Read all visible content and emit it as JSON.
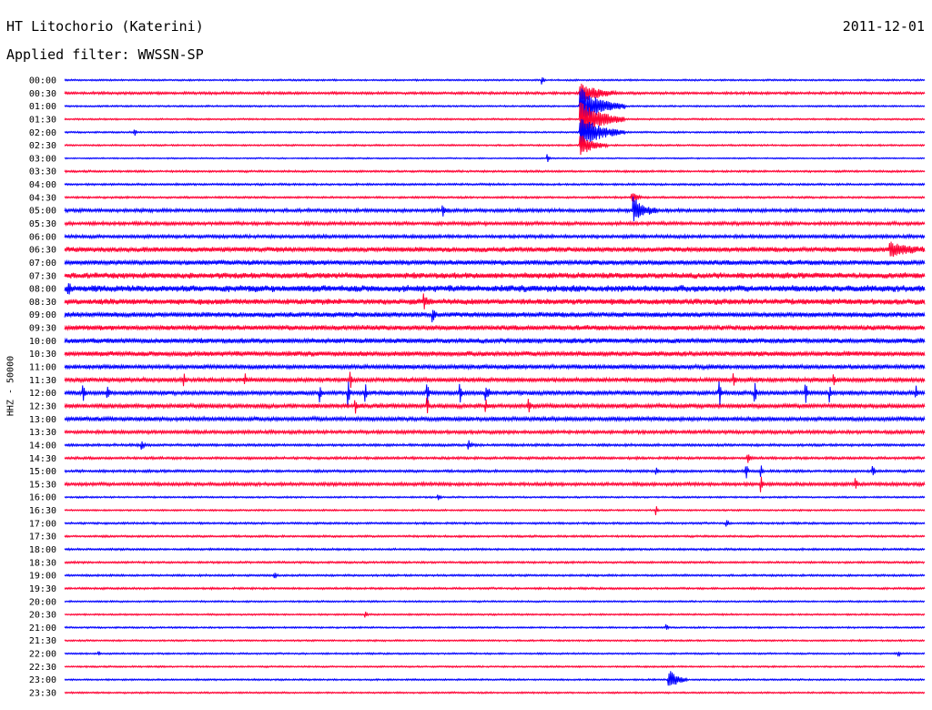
{
  "header": {
    "station": "HT Litochorio (Katerini)",
    "date": "2011-12-01",
    "filter": "Applied filter: WWSSN-SP",
    "channel": "HHZ - 50000"
  },
  "chart_data": {
    "type": "line",
    "title": "HT Litochorio (Katerini)",
    "subtitle": "Applied filter: WWSSN-SP",
    "ylabel": "HHZ - 50000",
    "colors": {
      "even_trace": "#0000ff",
      "odd_trace": "#ff0033"
    },
    "rows": [
      {
        "label": "00:00",
        "noise": 1,
        "events": [
          {
            "x": 0.556,
            "a": 4,
            "d": 0.002
          }
        ]
      },
      {
        "label": "00:30",
        "noise": 1.5,
        "events": [
          {
            "x": 0.6,
            "a": 12,
            "d": 0.04
          }
        ]
      },
      {
        "label": "01:00",
        "noise": 1,
        "events": [
          {
            "x": 0.6,
            "a": 20,
            "d": 0.05
          }
        ]
      },
      {
        "label": "01:30",
        "noise": 1,
        "events": [
          {
            "x": 0.6,
            "a": 20,
            "d": 0.05
          }
        ]
      },
      {
        "label": "02:00",
        "noise": 1,
        "events": [
          {
            "x": 0.082,
            "a": 4,
            "d": 0.002
          },
          {
            "x": 0.6,
            "a": 18,
            "d": 0.05
          }
        ]
      },
      {
        "label": "02:30",
        "noise": 1,
        "events": [
          {
            "x": 0.6,
            "a": 12,
            "d": 0.03
          }
        ]
      },
      {
        "label": "03:00",
        "noise": 0.8,
        "events": [
          {
            "x": 0.562,
            "a": 4,
            "d": 0.003
          }
        ]
      },
      {
        "label": "03:30",
        "noise": 1.2,
        "events": []
      },
      {
        "label": "04:00",
        "noise": 1.2,
        "events": []
      },
      {
        "label": "04:30",
        "noise": 1.2,
        "events": [
          {
            "x": 0.66,
            "a": 6,
            "d": 0.01
          }
        ]
      },
      {
        "label": "05:00",
        "noise": 2,
        "events": [
          {
            "x": 0.44,
            "a": 5,
            "d": 0.006
          },
          {
            "x": 0.662,
            "a": 14,
            "d": 0.025
          }
        ]
      },
      {
        "label": "05:30",
        "noise": 2,
        "events": []
      },
      {
        "label": "06:00",
        "noise": 2,
        "events": []
      },
      {
        "label": "06:30",
        "noise": 3,
        "events": [
          {
            "x": 0.96,
            "a": 7,
            "d": 0.04
          }
        ]
      },
      {
        "label": "07:00",
        "noise": 3,
        "events": []
      },
      {
        "label": "07:30",
        "noise": 3.5,
        "events": []
      },
      {
        "label": "08:00",
        "noise": 4,
        "events": [
          {
            "x": 0.005,
            "a": 7,
            "d": 0.004
          }
        ]
      },
      {
        "label": "08:30",
        "noise": 3.5,
        "events": [
          {
            "x": 0.418,
            "a": 7,
            "d": 0.006
          }
        ]
      },
      {
        "label": "09:00",
        "noise": 3,
        "events": [
          {
            "x": 0.428,
            "a": 8,
            "d": 0.004
          }
        ]
      },
      {
        "label": "09:30",
        "noise": 3,
        "events": []
      },
      {
        "label": "10:00",
        "noise": 3,
        "events": []
      },
      {
        "label": "10:30",
        "noise": 3,
        "events": []
      },
      {
        "label": "11:00",
        "noise": 2.5,
        "events": []
      },
      {
        "label": "11:30",
        "noise": 2.5,
        "events": [
          {
            "x": 0.139,
            "a": 6,
            "d": 0.002
          },
          {
            "x": 0.21,
            "a": 6,
            "d": 0.002
          },
          {
            "x": 0.333,
            "a": 7,
            "d": 0.002
          },
          {
            "x": 0.778,
            "a": 7,
            "d": 0.002
          },
          {
            "x": 0.895,
            "a": 7,
            "d": 0.002
          }
        ]
      },
      {
        "label": "12:00",
        "noise": 2.5,
        "events": [
          {
            "x": 0.022,
            "a": 8,
            "d": 0.003
          },
          {
            "x": 0.05,
            "a": 6,
            "d": 0.003
          },
          {
            "x": 0.297,
            "a": 12,
            "d": 0.002
          },
          {
            "x": 0.33,
            "a": 16,
            "d": 0.002
          },
          {
            "x": 0.35,
            "a": 8,
            "d": 0.002
          },
          {
            "x": 0.422,
            "a": 14,
            "d": 0.002
          },
          {
            "x": 0.46,
            "a": 10,
            "d": 0.002
          },
          {
            "x": 0.49,
            "a": 8,
            "d": 0.006
          },
          {
            "x": 0.762,
            "a": 12,
            "d": 0.002
          },
          {
            "x": 0.803,
            "a": 10,
            "d": 0.002
          },
          {
            "x": 0.862,
            "a": 14,
            "d": 0.002
          },
          {
            "x": 0.89,
            "a": 10,
            "d": 0.002
          },
          {
            "x": 0.99,
            "a": 8,
            "d": 0.002
          }
        ]
      },
      {
        "label": "12:30",
        "noise": 2.5,
        "events": [
          {
            "x": 0.338,
            "a": 8,
            "d": 0.002
          },
          {
            "x": 0.422,
            "a": 10,
            "d": 0.002
          },
          {
            "x": 0.49,
            "a": 8,
            "d": 0.002
          },
          {
            "x": 0.54,
            "a": 6,
            "d": 0.002
          }
        ]
      },
      {
        "label": "13:00",
        "noise": 2.5,
        "events": []
      },
      {
        "label": "13:30",
        "noise": 2,
        "events": []
      },
      {
        "label": "14:00",
        "noise": 1.5,
        "events": [
          {
            "x": 0.09,
            "a": 5,
            "d": 0.004
          },
          {
            "x": 0.47,
            "a": 4,
            "d": 0.004
          }
        ]
      },
      {
        "label": "14:30",
        "noise": 1.5,
        "events": [
          {
            "x": 0.795,
            "a": 4,
            "d": 0.004
          }
        ]
      },
      {
        "label": "15:00",
        "noise": 1.5,
        "events": [
          {
            "x": 0.688,
            "a": 5,
            "d": 0.002
          },
          {
            "x": 0.793,
            "a": 8,
            "d": 0.002
          },
          {
            "x": 0.81,
            "a": 6,
            "d": 0.002
          },
          {
            "x": 0.94,
            "a": 7,
            "d": 0.003
          }
        ]
      },
      {
        "label": "15:30",
        "noise": 2,
        "events": [
          {
            "x": 0.81,
            "a": 8,
            "d": 0.002
          },
          {
            "x": 0.92,
            "a": 8,
            "d": 0.002
          }
        ]
      },
      {
        "label": "16:00",
        "noise": 1,
        "events": [
          {
            "x": 0.435,
            "a": 3,
            "d": 0.003
          }
        ]
      },
      {
        "label": "16:30",
        "noise": 1,
        "events": [
          {
            "x": 0.688,
            "a": 5,
            "d": 0.002
          }
        ]
      },
      {
        "label": "17:00",
        "noise": 1.2,
        "events": [
          {
            "x": 0.77,
            "a": 4,
            "d": 0.002
          }
        ]
      },
      {
        "label": "17:30",
        "noise": 1.2,
        "events": []
      },
      {
        "label": "18:00",
        "noise": 1.2,
        "events": []
      },
      {
        "label": "18:30",
        "noise": 1.2,
        "events": []
      },
      {
        "label": "19:00",
        "noise": 1.2,
        "events": [
          {
            "x": 0.245,
            "a": 3,
            "d": 0.003
          }
        ]
      },
      {
        "label": "19:30",
        "noise": 1.2,
        "events": []
      },
      {
        "label": "20:00",
        "noise": 1,
        "events": []
      },
      {
        "label": "20:30",
        "noise": 1,
        "events": [
          {
            "x": 0.35,
            "a": 3,
            "d": 0.003
          }
        ]
      },
      {
        "label": "21:00",
        "noise": 1,
        "events": [
          {
            "x": 0.7,
            "a": 3,
            "d": 0.003
          }
        ]
      },
      {
        "label": "21:30",
        "noise": 1,
        "events": []
      },
      {
        "label": "22:00",
        "noise": 1,
        "events": [
          {
            "x": 0.04,
            "a": 3,
            "d": 0.002
          },
          {
            "x": 0.97,
            "a": 3,
            "d": 0.002
          }
        ]
      },
      {
        "label": "22:30",
        "noise": 1,
        "events": []
      },
      {
        "label": "23:00",
        "noise": 1,
        "events": [
          {
            "x": 0.703,
            "a": 11,
            "d": 0.02
          }
        ]
      },
      {
        "label": "23:30",
        "noise": 1,
        "events": []
      }
    ]
  }
}
